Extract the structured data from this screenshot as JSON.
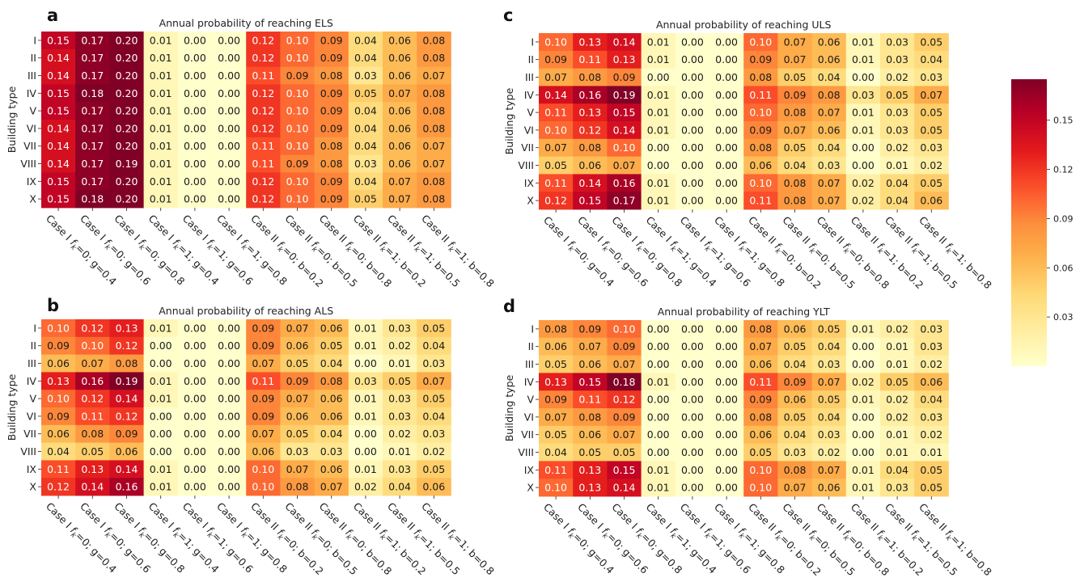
{
  "figure": {
    "ylabel": "Building type",
    "row_labels": [
      "I",
      "II",
      "III",
      "IV",
      "V",
      "VI",
      "VII",
      "VIII",
      "IX",
      "X"
    ],
    "col_labels": [
      "Case I f_k=0; g=0.4",
      "Case I f_k=0; g=0.6",
      "Case I f_k=0; g=0.8",
      "Case I f_k=1; g=0.4",
      "Case I f_k=1; g=0.6",
      "Case I f_k=1; g=0.8",
      "Case II f_k=0; b=0.2",
      "Case II f_k=0; b=0.5",
      "Case II f_k=0; b=0.8",
      "Case II f_k=1; b=0.2",
      "Case II f_k=1; b=0.5",
      "Case II f_k=1; b=0.8"
    ],
    "colorbar": {
      "colormap": "YlOrRd",
      "min": 0.0,
      "max": 0.175,
      "ticks": [
        "0.03",
        "0.06",
        "0.09",
        "0.12",
        "0.15"
      ],
      "tick_values": [
        0.03,
        0.06,
        0.09,
        0.12,
        0.15
      ]
    }
  },
  "chart_data": [
    {
      "type": "heatmap",
      "panel": "a",
      "title": "Annual probability of reaching ELS",
      "values": [
        [
          0.15,
          0.17,
          0.2,
          0.01,
          0.0,
          0.0,
          0.12,
          0.1,
          0.09,
          0.04,
          0.06,
          0.08
        ],
        [
          0.14,
          0.17,
          0.2,
          0.01,
          0.0,
          0.0,
          0.12,
          0.1,
          0.09,
          0.04,
          0.06,
          0.08
        ],
        [
          0.14,
          0.17,
          0.2,
          0.01,
          0.0,
          0.0,
          0.11,
          0.09,
          0.08,
          0.03,
          0.06,
          0.07
        ],
        [
          0.15,
          0.18,
          0.2,
          0.01,
          0.0,
          0.0,
          0.12,
          0.1,
          0.09,
          0.05,
          0.07,
          0.08
        ],
        [
          0.15,
          0.17,
          0.2,
          0.01,
          0.0,
          0.0,
          0.12,
          0.1,
          0.09,
          0.04,
          0.06,
          0.08
        ],
        [
          0.14,
          0.17,
          0.2,
          0.01,
          0.0,
          0.0,
          0.12,
          0.1,
          0.09,
          0.04,
          0.06,
          0.08
        ],
        [
          0.14,
          0.17,
          0.2,
          0.01,
          0.0,
          0.0,
          0.11,
          0.1,
          0.08,
          0.04,
          0.06,
          0.07
        ],
        [
          0.14,
          0.17,
          0.19,
          0.01,
          0.0,
          0.0,
          0.11,
          0.09,
          0.08,
          0.03,
          0.06,
          0.07
        ],
        [
          0.15,
          0.17,
          0.2,
          0.01,
          0.0,
          0.0,
          0.12,
          0.1,
          0.09,
          0.04,
          0.07,
          0.08
        ],
        [
          0.15,
          0.18,
          0.2,
          0.01,
          0.0,
          0.0,
          0.12,
          0.1,
          0.09,
          0.05,
          0.07,
          0.08
        ]
      ]
    },
    {
      "type": "heatmap",
      "panel": "b",
      "title": "Annual probability of reaching ALS",
      "values": [
        [
          0.1,
          0.12,
          0.13,
          0.01,
          0.0,
          0.0,
          0.09,
          0.07,
          0.06,
          0.01,
          0.03,
          0.05
        ],
        [
          0.09,
          0.1,
          0.12,
          0.0,
          0.0,
          0.0,
          0.09,
          0.06,
          0.05,
          0.01,
          0.02,
          0.04
        ],
        [
          0.06,
          0.07,
          0.08,
          0.0,
          0.0,
          0.0,
          0.07,
          0.05,
          0.04,
          0.0,
          0.01,
          0.03
        ],
        [
          0.13,
          0.16,
          0.19,
          0.01,
          0.0,
          0.0,
          0.11,
          0.09,
          0.08,
          0.03,
          0.05,
          0.07
        ],
        [
          0.1,
          0.12,
          0.14,
          0.01,
          0.0,
          0.0,
          0.09,
          0.07,
          0.06,
          0.01,
          0.03,
          0.05
        ],
        [
          0.09,
          0.11,
          0.12,
          0.0,
          0.0,
          0.0,
          0.09,
          0.06,
          0.06,
          0.01,
          0.03,
          0.04
        ],
        [
          0.06,
          0.08,
          0.09,
          0.0,
          0.0,
          0.0,
          0.07,
          0.05,
          0.04,
          0.0,
          0.02,
          0.03
        ],
        [
          0.04,
          0.05,
          0.06,
          0.0,
          0.0,
          0.0,
          0.06,
          0.03,
          0.03,
          0.0,
          0.01,
          0.02
        ],
        [
          0.11,
          0.13,
          0.14,
          0.01,
          0.0,
          0.0,
          0.1,
          0.07,
          0.06,
          0.01,
          0.03,
          0.05
        ],
        [
          0.12,
          0.14,
          0.16,
          0.01,
          0.0,
          0.0,
          0.1,
          0.08,
          0.07,
          0.02,
          0.04,
          0.06
        ]
      ]
    },
    {
      "type": "heatmap",
      "panel": "c",
      "title": "Annual probability of reaching ULS",
      "values": [
        [
          0.1,
          0.13,
          0.14,
          0.01,
          0.0,
          0.0,
          0.1,
          0.07,
          0.06,
          0.01,
          0.03,
          0.05
        ],
        [
          0.09,
          0.11,
          0.13,
          0.01,
          0.0,
          0.0,
          0.09,
          0.07,
          0.06,
          0.01,
          0.03,
          0.04
        ],
        [
          0.07,
          0.08,
          0.09,
          0.0,
          0.0,
          0.0,
          0.08,
          0.05,
          0.04,
          0.0,
          0.02,
          0.03
        ],
        [
          0.14,
          0.16,
          0.19,
          0.01,
          0.0,
          0.0,
          0.11,
          0.09,
          0.08,
          0.03,
          0.05,
          0.07
        ],
        [
          0.11,
          0.13,
          0.15,
          0.01,
          0.0,
          0.0,
          0.1,
          0.08,
          0.07,
          0.01,
          0.03,
          0.05
        ],
        [
          0.1,
          0.12,
          0.14,
          0.01,
          0.0,
          0.0,
          0.09,
          0.07,
          0.06,
          0.01,
          0.03,
          0.05
        ],
        [
          0.07,
          0.08,
          0.1,
          0.0,
          0.0,
          0.0,
          0.08,
          0.05,
          0.04,
          0.0,
          0.02,
          0.03
        ],
        [
          0.05,
          0.06,
          0.07,
          0.0,
          0.0,
          0.0,
          0.06,
          0.04,
          0.03,
          0.0,
          0.01,
          0.02
        ],
        [
          0.11,
          0.14,
          0.16,
          0.01,
          0.0,
          0.0,
          0.1,
          0.08,
          0.07,
          0.02,
          0.04,
          0.05
        ],
        [
          0.12,
          0.15,
          0.17,
          0.01,
          0.0,
          0.0,
          0.11,
          0.08,
          0.07,
          0.02,
          0.04,
          0.06
        ]
      ]
    },
    {
      "type": "heatmap",
      "panel": "d",
      "title": "Annual probability of reaching YLT",
      "values": [
        [
          0.08,
          0.09,
          0.1,
          0.0,
          0.0,
          0.0,
          0.08,
          0.06,
          0.05,
          0.01,
          0.02,
          0.03
        ],
        [
          0.06,
          0.07,
          0.09,
          0.0,
          0.0,
          0.0,
          0.07,
          0.05,
          0.04,
          0.0,
          0.01,
          0.03
        ],
        [
          0.05,
          0.06,
          0.07,
          0.0,
          0.0,
          0.0,
          0.06,
          0.04,
          0.03,
          0.0,
          0.01,
          0.02
        ],
        [
          0.13,
          0.15,
          0.18,
          0.01,
          0.0,
          0.0,
          0.11,
          0.09,
          0.07,
          0.02,
          0.05,
          0.06
        ],
        [
          0.09,
          0.11,
          0.12,
          0.0,
          0.0,
          0.0,
          0.09,
          0.06,
          0.05,
          0.01,
          0.02,
          0.04
        ],
        [
          0.07,
          0.08,
          0.09,
          0.0,
          0.0,
          0.0,
          0.08,
          0.05,
          0.04,
          0.0,
          0.02,
          0.03
        ],
        [
          0.05,
          0.06,
          0.07,
          0.0,
          0.0,
          0.0,
          0.06,
          0.04,
          0.03,
          0.0,
          0.01,
          0.02
        ],
        [
          0.04,
          0.05,
          0.05,
          0.0,
          0.0,
          0.0,
          0.05,
          0.03,
          0.02,
          0.0,
          0.01,
          0.01
        ],
        [
          0.11,
          0.13,
          0.15,
          0.01,
          0.0,
          0.0,
          0.1,
          0.08,
          0.07,
          0.01,
          0.04,
          0.05
        ],
        [
          0.1,
          0.13,
          0.14,
          0.01,
          0.0,
          0.0,
          0.1,
          0.07,
          0.06,
          0.01,
          0.03,
          0.05
        ]
      ]
    }
  ]
}
